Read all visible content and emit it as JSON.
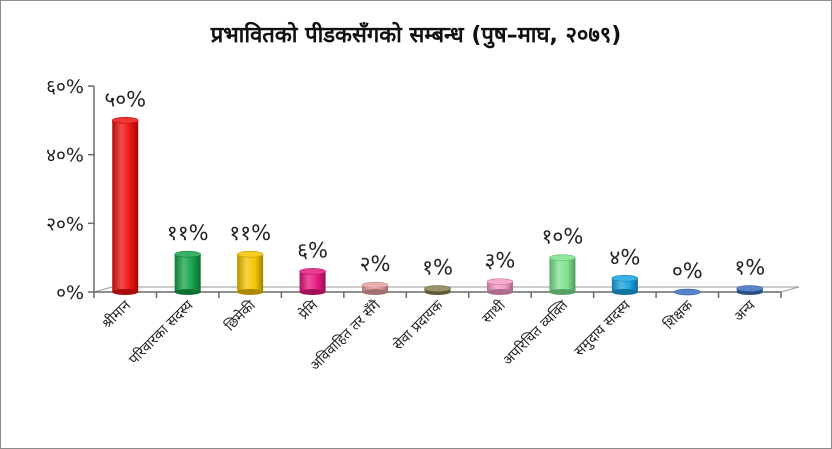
{
  "chart_data": {
    "type": "bar",
    "title": "प्रभावितको पीडकसँगको सम्बन्ध (पुष–माघ, २०७९)",
    "xlabel": "",
    "ylabel": "",
    "ylim": [
      0,
      60
    ],
    "yticks": [
      "०%",
      "२०%",
      "४०%",
      "६०%"
    ],
    "categories": [
      "श्रीमान",
      "परिवारका सदस्य",
      "छिमेकी",
      "प्रेमि",
      "अविवाहित तर सँगै",
      "सेवा प्रदायक",
      "साथी",
      "अपरिचित व्यक्ति",
      "समुदाय सदस्य",
      "शिक्षक",
      "अन्य"
    ],
    "values": [
      50,
      11,
      11,
      6,
      2,
      1,
      3,
      10,
      4,
      0,
      1
    ],
    "value_labels": [
      "५०%",
      "११%",
      "११%",
      "६%",
      "२%",
      "१%",
      "३%",
      "१०%",
      "४%",
      "०%",
      "१%"
    ],
    "colors": [
      "#ee1111",
      "#16a34a",
      "#f5c400",
      "#e8177f",
      "#e8a0a0",
      "#8a8050",
      "#f59ac6",
      "#7ee38f",
      "#1aa3e0",
      "#3a6fc0",
      "#3a6fc0"
    ],
    "grid": false,
    "legend": "none"
  }
}
